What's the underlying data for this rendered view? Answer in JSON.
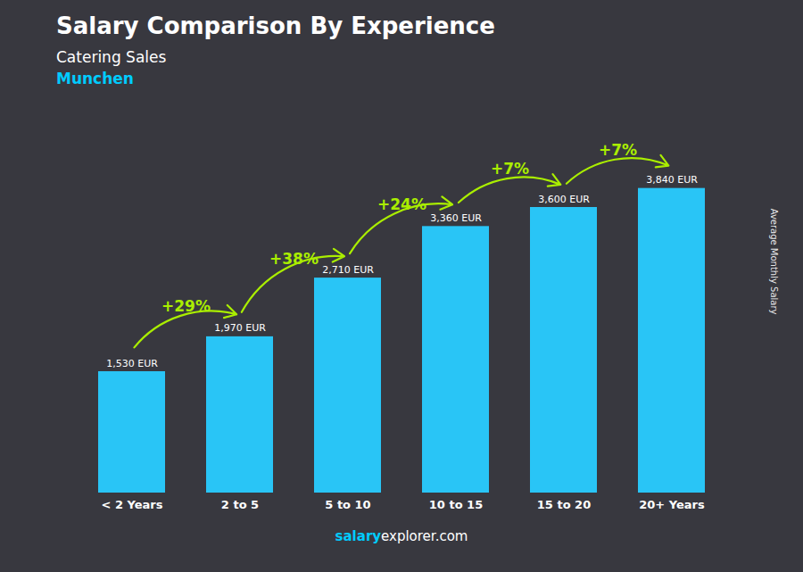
{
  "chart_data": {
    "type": "bar",
    "title": "Salary Comparison By Experience",
    "subtitle": "Catering Sales",
    "ylabel": "Average Monthly Salary",
    "categories": [
      "< 2 Years",
      "2 to 5",
      "5 to 10",
      "10 to 15",
      "15 to 20",
      "20+ Years"
    ],
    "values": [
      1530,
      1970,
      2710,
      3360,
      3600,
      3840
    ],
    "value_labels": [
      "1,530 EUR",
      "1,970 EUR",
      "2,710 EUR",
      "3,360 EUR",
      "3,600 EUR",
      "3,840 EUR"
    ],
    "data_labels": true,
    "color": "#29c5f6",
    "ylim": [
      0,
      4500
    ],
    "tick_labels": "x",
    "grid": false,
    "annotations": [
      {
        "text": "Munchen",
        "color": "#00ccff"
      },
      {
        "text": "+29%",
        "from": "< 2 Years",
        "to": "2 to 5",
        "color": "#aaee00"
      },
      {
        "text": "+38%",
        "from": "2 to 5",
        "to": "5 to 10",
        "color": "#aaee00"
      },
      {
        "text": "+24%",
        "from": "5 to 10",
        "to": "10 to 15",
        "color": "#aaee00"
      },
      {
        "text": "+7%",
        "from": "10 to 15",
        "to": "15 to 20",
        "color": "#aaee00"
      },
      {
        "text": "+7%",
        "from": "15 to 20",
        "to": "20+ Years",
        "color": "#aaee00"
      },
      {
        "text": "salary",
        "color": "#00ccff"
      },
      {
        "text": "explorer.com",
        "color": "#ffffff"
      }
    ]
  }
}
